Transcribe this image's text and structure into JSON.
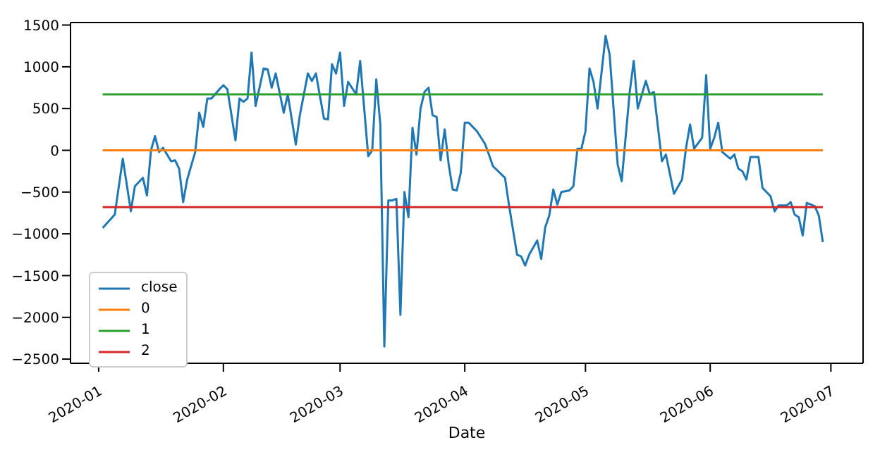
{
  "chart_data": {
    "type": "line",
    "xlabel": "Date",
    "legend": "bottom left",
    "xlim": [
      "2019-12-25",
      "2020-07-09"
    ],
    "xticks": [
      "2020-01",
      "2020-02",
      "2020-03",
      "2020-04",
      "2020-05",
      "2020-06",
      "2020-07"
    ],
    "ylim": [
      -2550,
      1530
    ],
    "yticks": [
      -2500,
      -2000,
      -1500,
      -1000,
      -500,
      0,
      500,
      1000,
      1500
    ],
    "series": [
      {
        "name": "close",
        "color": "#1f77b4",
        "x": [
          "2020-01-02",
          "2020-01-05",
          "2020-01-07",
          "2020-01-09",
          "2020-01-10",
          "2020-01-12",
          "2020-01-13",
          "2020-01-14",
          "2020-01-15",
          "2020-01-16",
          "2020-01-17",
          "2020-01-19",
          "2020-01-20",
          "2020-01-21",
          "2020-01-22",
          "2020-01-23",
          "2020-01-25",
          "2020-01-26",
          "2020-01-27",
          "2020-01-28",
          "2020-01-29",
          "2020-01-31",
          "2020-02-01",
          "2020-02-02",
          "2020-02-04",
          "2020-02-05",
          "2020-02-06",
          "2020-02-07",
          "2020-02-08",
          "2020-02-09",
          "2020-02-11",
          "2020-02-12",
          "2020-02-13",
          "2020-02-14",
          "2020-02-16",
          "2020-02-17",
          "2020-02-19",
          "2020-02-20",
          "2020-02-22",
          "2020-02-23",
          "2020-02-24",
          "2020-02-26",
          "2020-02-27",
          "2020-02-28",
          "2020-02-29",
          "2020-03-01",
          "2020-03-02",
          "2020-03-03",
          "2020-03-05",
          "2020-03-06",
          "2020-03-08",
          "2020-03-09",
          "2020-03-10",
          "2020-03-11",
          "2020-03-12",
          "2020-03-13",
          "2020-03-14",
          "2020-03-15",
          "2020-03-16",
          "2020-03-17",
          "2020-03-18",
          "2020-03-19",
          "2020-03-20",
          "2020-03-21",
          "2020-03-22",
          "2020-03-23",
          "2020-03-24",
          "2020-03-25",
          "2020-03-26",
          "2020-03-27",
          "2020-03-28",
          "2020-03-29",
          "2020-03-30",
          "2020-03-31",
          "2020-04-01",
          "2020-04-02",
          "2020-04-04",
          "2020-04-06",
          "2020-04-07",
          "2020-04-08",
          "2020-04-11",
          "2020-04-12",
          "2020-04-14",
          "2020-04-15",
          "2020-04-16",
          "2020-04-17",
          "2020-04-19",
          "2020-04-20",
          "2020-04-21",
          "2020-04-22",
          "2020-04-23",
          "2020-04-24",
          "2020-04-25",
          "2020-04-27",
          "2020-04-28",
          "2020-04-29",
          "2020-04-30",
          "2020-05-01",
          "2020-05-02",
          "2020-05-03",
          "2020-05-04",
          "2020-05-06",
          "2020-05-07",
          "2020-05-09",
          "2020-05-10",
          "2020-05-12",
          "2020-05-13",
          "2020-05-14",
          "2020-05-16",
          "2020-05-17",
          "2020-05-18",
          "2020-05-20",
          "2020-05-21",
          "2020-05-23",
          "2020-05-25",
          "2020-05-26",
          "2020-05-27",
          "2020-05-28",
          "2020-05-30",
          "2020-05-31",
          "2020-06-01",
          "2020-06-02",
          "2020-06-03",
          "2020-06-04",
          "2020-06-06",
          "2020-06-07",
          "2020-06-08",
          "2020-06-09",
          "2020-06-10",
          "2020-06-11",
          "2020-06-13",
          "2020-06-14",
          "2020-06-16",
          "2020-06-17",
          "2020-06-18",
          "2020-06-20",
          "2020-06-21",
          "2020-06-22",
          "2020-06-23",
          "2020-06-24",
          "2020-06-25",
          "2020-06-27",
          "2020-06-28",
          "2020-06-29"
        ],
        "values": [
          -930,
          -770,
          -100,
          -730,
          -430,
          -330,
          -540,
          0,
          170,
          -20,
          30,
          -130,
          -120,
          -220,
          -620,
          -350,
          -20,
          450,
          280,
          620,
          620,
          730,
          780,
          730,
          120,
          620,
          580,
          620,
          1170,
          530,
          980,
          970,
          750,
          920,
          450,
          670,
          70,
          420,
          920,
          830,
          920,
          380,
          370,
          1030,
          920,
          1170,
          530,
          820,
          670,
          1070,
          -70,
          0,
          850,
          310,
          -2350,
          -600,
          -600,
          -580,
          -1970,
          -500,
          -800,
          270,
          -50,
          500,
          700,
          750,
          420,
          400,
          -120,
          250,
          -170,
          -470,
          -480,
          -270,
          330,
          330,
          230,
          80,
          -50,
          -190,
          -330,
          -660,
          -1250,
          -1270,
          -1380,
          -1250,
          -1080,
          -1300,
          -920,
          -780,
          -470,
          -650,
          -500,
          -480,
          -430,
          20,
          20,
          230,
          980,
          820,
          500,
          1370,
          1150,
          -170,
          -370,
          700,
          1070,
          500,
          830,
          670,
          700,
          -130,
          -50,
          -520,
          -350,
          30,
          310,
          20,
          150,
          900,
          20,
          150,
          330,
          -20,
          -100,
          -50,
          -220,
          -250,
          -350,
          -80,
          -80,
          -450,
          -550,
          -730,
          -660,
          -660,
          -620,
          -770,
          -800,
          -1020,
          -630,
          -670,
          -780,
          -1100
        ]
      },
      {
        "name": "0",
        "color": "#ff7f0e",
        "x": [
          "2020-01-02",
          "2020-06-29"
        ],
        "values": [
          0,
          0
        ]
      },
      {
        "name": "1",
        "color": "#2ca02c",
        "x": [
          "2020-01-02",
          "2020-06-29"
        ],
        "values": [
          670,
          670
        ]
      },
      {
        "name": "2",
        "color": "#d62728",
        "x": [
          "2020-01-02",
          "2020-06-29"
        ],
        "values": [
          -680,
          -680
        ]
      }
    ]
  }
}
